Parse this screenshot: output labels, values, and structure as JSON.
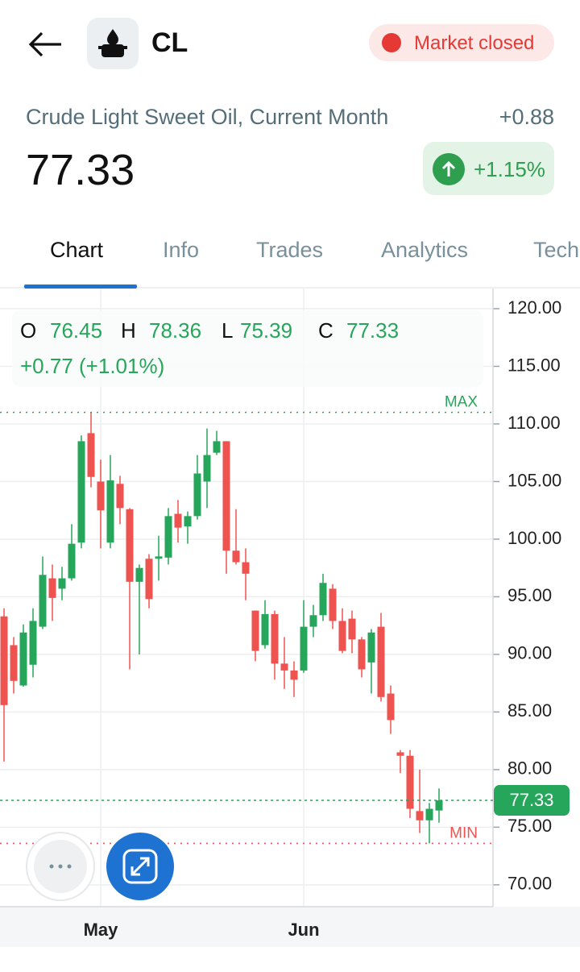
{
  "header": {
    "symbol": "CL",
    "status": "Market closed"
  },
  "quote": {
    "name": "Crude Light Sweet Oil, Current Month",
    "change": "+0.88",
    "price": "77.33",
    "change_percent": "+1.15%"
  },
  "tabs": [
    "Chart",
    "Info",
    "Trades",
    "Analytics",
    "Technicals"
  ],
  "chart_data": {
    "type": "candlestick",
    "categories": [
      null,
      null,
      null,
      null,
      null,
      null,
      null,
      null,
      null,
      null,
      "May",
      null,
      null,
      null,
      null,
      null,
      null,
      null,
      null,
      null,
      null,
      null,
      null,
      null,
      null,
      null,
      null,
      null,
      null,
      null,
      null,
      "Jun",
      null,
      null,
      null,
      null,
      null,
      null,
      null,
      null,
      null,
      null,
      null,
      null,
      null,
      null
    ],
    "open": [
      93.3,
      90.8,
      87.3,
      89.1,
      92.4,
      96.6,
      95.7,
      96.6,
      99.7,
      109.2,
      105.0,
      99.7,
      104.8,
      102.6,
      96.3,
      98.3,
      98.3,
      98.4,
      102.2,
      101.1,
      102.0,
      105.0,
      107.5,
      108.5,
      99.0,
      98.0,
      93.8,
      90.8,
      93.5,
      89.2,
      88.6,
      88.6,
      92.4,
      93.4,
      95.7,
      92.9,
      93.1,
      91.3,
      89.3,
      92.4,
      86.6,
      81.5,
      81.2,
      76.4,
      75.6,
      76.45
    ],
    "high": [
      94.0,
      91.5,
      92.6,
      94.0,
      98.5,
      97.8,
      97.6,
      101.3,
      109.0,
      111.0,
      106.9,
      107.3,
      105.5,
      102.7,
      97.8,
      98.7,
      100.3,
      102.7,
      103.4,
      102.4,
      107.3,
      109.6,
      109.4,
      108.5,
      102.6,
      99.2,
      93.8,
      94.7,
      93.8,
      91.5,
      89.4,
      94.7,
      94.3,
      97.0,
      96.1,
      94.0,
      93.8,
      91.5,
      92.2,
      93.6,
      87.3,
      81.7,
      81.7,
      80.0,
      77.1,
      78.36
    ],
    "low": [
      80.7,
      86.6,
      87.2,
      88.0,
      92.2,
      92.9,
      94.7,
      96.4,
      99.2,
      104.5,
      99.2,
      99.2,
      101.3,
      88.7,
      90.0,
      94.0,
      96.4,
      97.8,
      99.7,
      99.6,
      101.7,
      102.7,
      107.3,
      97.0,
      97.8,
      94.7,
      89.4,
      90.5,
      87.8,
      87.0,
      86.3,
      88.4,
      91.5,
      92.9,
      92.2,
      90.1,
      90.1,
      88.0,
      86.6,
      85.9,
      83.1,
      79.7,
      75.8,
      74.5,
      73.6,
      75.39
    ],
    "close": [
      85.6,
      87.7,
      91.9,
      92.9,
      96.9,
      94.9,
      96.6,
      99.6,
      108.5,
      105.4,
      102.5,
      105.1,
      102.7,
      96.3,
      97.5,
      94.8,
      98.5,
      102.0,
      101.0,
      102.0,
      105.7,
      107.3,
      108.5,
      99.0,
      98.0,
      97.0,
      90.3,
      93.5,
      89.2,
      88.6,
      87.8,
      92.4,
      93.4,
      96.2,
      92.9,
      90.3,
      91.3,
      88.7,
      91.9,
      86.3,
      84.3,
      81.2,
      76.6,
      75.6,
      76.6,
      77.33
    ],
    "up_color": "#26a65b",
    "down_color": "#ef5350",
    "ylim": [
      68.1,
      121.75
    ],
    "yticks": [
      {
        "value": 70,
        "label": "70.00"
      },
      {
        "value": 75,
        "label": "75.00"
      },
      {
        "value": 80,
        "label": "80.00"
      },
      {
        "value": 85,
        "label": "85.00"
      },
      {
        "value": 90,
        "label": "90.00"
      },
      {
        "value": 95,
        "label": "95.00"
      },
      {
        "value": 100,
        "label": "100.00"
      },
      {
        "value": 105,
        "label": "105.00"
      },
      {
        "value": 110,
        "label": "110.00"
      },
      {
        "value": 115,
        "label": "115.00"
      },
      {
        "value": 120,
        "label": "120.00"
      }
    ],
    "grid": true,
    "legend": {
      "labels": [
        "O",
        "H",
        "L",
        "C"
      ],
      "change": "+0.77 (+1.01%)"
    },
    "max_line": {
      "label": "MAX",
      "value": 111.0
    },
    "min_line": {
      "label": "MIN",
      "value": 73.6
    }
  }
}
